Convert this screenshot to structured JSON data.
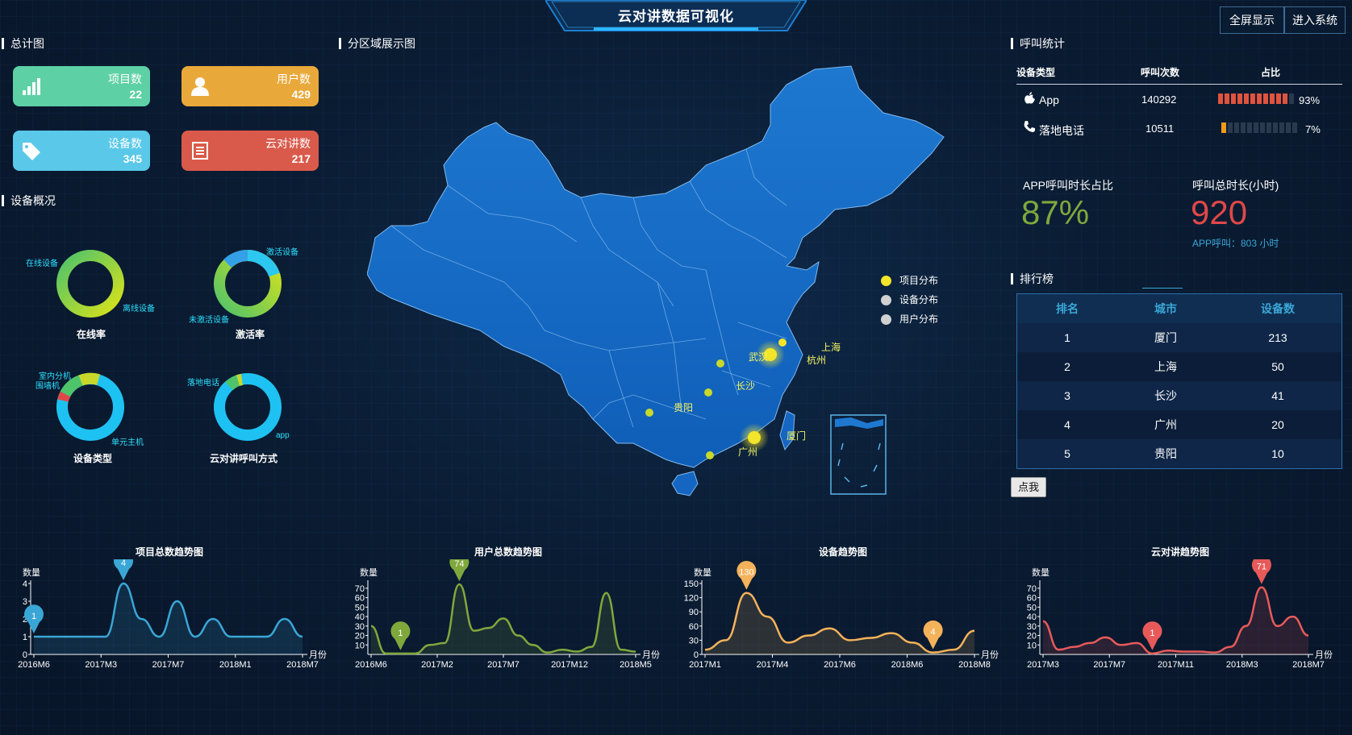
{
  "header": {
    "title": "云对讲数据可视化",
    "fullscreen_label": "全屏显示",
    "enter_label": "进入系统"
  },
  "summary": {
    "title": "总计图",
    "cards": [
      {
        "label": "项目数",
        "value": "22",
        "color": "#5ed0a5",
        "icon": "bar-chart-icon"
      },
      {
        "label": "用户数",
        "value": "429",
        "color": "#e9a93a",
        "icon": "user-icon"
      },
      {
        "label": "设备数",
        "value": "345",
        "color": "#5ac8e8",
        "icon": "tag-icon"
      },
      {
        "label": "云对讲数",
        "value": "217",
        "color": "#d95a4b",
        "icon": "list-icon"
      }
    ]
  },
  "devices": {
    "title": "设备概况",
    "donuts": [
      {
        "name": "在线率",
        "labels": [
          "在线设备",
          "离线设备"
        ]
      },
      {
        "name": "激活率",
        "labels": [
          "激活设备",
          "未激活设备"
        ]
      },
      {
        "name": "设备类型",
        "labels": [
          "室内分机",
          "围墙机",
          "单元主机"
        ]
      },
      {
        "name": "云对讲呼叫方式",
        "labels": [
          "落地电话",
          "app"
        ]
      }
    ]
  },
  "map": {
    "title": "分区域展示图",
    "legend": [
      "项目分布",
      "设备分布",
      "用户分布"
    ],
    "legend_colors": [
      "#f2e52a",
      "#d0d0d0",
      "#d0d0d0"
    ],
    "cities": [
      "上海",
      "杭州",
      "武汉",
      "长沙",
      "贵阳",
      "厦门",
      "广州"
    ]
  },
  "calls": {
    "title": "呼叫统计",
    "headers": [
      "设备类型",
      "呼叫次数",
      "占比"
    ],
    "rows": [
      {
        "type": "App",
        "count": "140292",
        "pct": "93%",
        "icon": "apple-icon",
        "fill": 0.93,
        "color": "#e0533f"
      },
      {
        "type": "落地电话",
        "count": "10511",
        "pct": "7%",
        "icon": "phone-icon",
        "fill": 0.07,
        "color": "#f39a1a"
      }
    ],
    "app_ratio_label": "APP呼叫时长占比",
    "app_ratio_value": "87%",
    "total_label": "呼叫总时长(小时)",
    "total_value": "920",
    "total_sub": "APP呼叫：803 小时"
  },
  "ranking": {
    "title": "排行榜",
    "headers": [
      "排名",
      "城市",
      "设备数"
    ],
    "rows": [
      [
        "1",
        "厦门",
        "213"
      ],
      [
        "2",
        "上海",
        "50"
      ],
      [
        "3",
        "长沙",
        "41"
      ],
      [
        "4",
        "广州",
        "20"
      ],
      [
        "5",
        "贵阳",
        "10"
      ]
    ],
    "button_label": "点我"
  },
  "chart_data": [
    {
      "type": "line",
      "title": "项目总数趋势图",
      "ylabel": "数量",
      "xlabel": "月份",
      "xticks": [
        "2016M6",
        "2017M3",
        "2017M7",
        "2018M1",
        "2018M7"
      ],
      "yticks": [
        0,
        1,
        2,
        3,
        4
      ],
      "ylim": [
        0,
        4
      ],
      "color": "#3aa6d6",
      "values": [
        1,
        1,
        1,
        1,
        1,
        4,
        2,
        1,
        3,
        1,
        2,
        1,
        1,
        1,
        2,
        1
      ],
      "markers": [
        {
          "label": "1",
          "index": 0
        },
        {
          "label": "4",
          "index": 5
        }
      ]
    },
    {
      "type": "line",
      "title": "用户总数趋势图",
      "ylabel": "数量",
      "xlabel": "月份",
      "xticks": [
        "2016M6",
        "2017M2",
        "2017M7",
        "2017M12",
        "2018M5"
      ],
      "yticks": [
        10,
        20,
        30,
        40,
        50,
        60,
        70
      ],
      "ylim": [
        0,
        75
      ],
      "color": "#7fa83c",
      "values": [
        30,
        1,
        1,
        1,
        10,
        12,
        74,
        25,
        28,
        38,
        20,
        10,
        2,
        5,
        3,
        8,
        65,
        5,
        3
      ],
      "markers": [
        {
          "label": "1",
          "index": 2
        },
        {
          "label": "74",
          "index": 6
        }
      ]
    },
    {
      "type": "line",
      "title": "设备趋势图",
      "ylabel": "数量",
      "xlabel": "月份",
      "xticks": [
        "2017M1",
        "2017M4",
        "2017M6",
        "2018M6",
        "2018M8"
      ],
      "yticks": [
        0,
        30,
        60,
        90,
        120,
        150
      ],
      "ylim": [
        0,
        150
      ],
      "color": "#f4b25a",
      "values": [
        10,
        30,
        130,
        80,
        25,
        40,
        55,
        30,
        35,
        45,
        25,
        4,
        10,
        50
      ],
      "markers": [
        {
          "label": "130",
          "index": 2
        },
        {
          "label": "4",
          "index": 11
        }
      ]
    },
    {
      "type": "line",
      "title": "云对讲趋势图",
      "ylabel": "数量",
      "xlabel": "月份",
      "xticks": [
        "2017M3",
        "2017M7",
        "2017M11",
        "2018M3",
        "2018M7"
      ],
      "yticks": [
        10,
        20,
        30,
        40,
        50,
        60,
        70
      ],
      "ylim": [
        0,
        75
      ],
      "color": "#e85a5a",
      "values": [
        35,
        5,
        8,
        12,
        18,
        10,
        12,
        1,
        4,
        3,
        3,
        2,
        8,
        30,
        71,
        30,
        40,
        20
      ],
      "markers": [
        {
          "label": "1",
          "index": 7
        },
        {
          "label": "71",
          "index": 14
        }
      ]
    }
  ]
}
